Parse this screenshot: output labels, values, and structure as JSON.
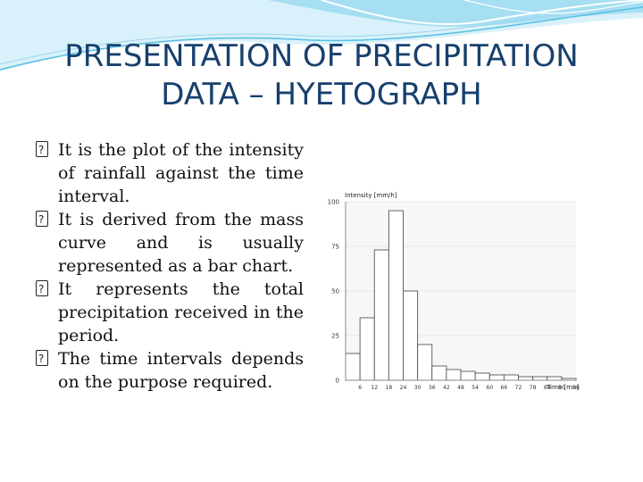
{
  "slide": {
    "title_line1": "PRESENTATION OF PRECIPITATION",
    "title_line2": "DATA – HYETOGRAPH",
    "bullets": [
      "It is the plot of the intensity of rainfall against the time interval.",
      "It is derived from the mass curve and is usually represented as a bar chart.",
      "It represents  the total precipitation received in the period.",
      " The time intervals depends on the purpose required."
    ]
  },
  "colors": {
    "title": "#17406d",
    "bar_stroke": "#555555",
    "wave_light": "#bfe7f5",
    "wave_mid": "#7fd0ee"
  },
  "chart_data": {
    "type": "bar",
    "ylabel": "Intensity [mm/h]",
    "xlabel": "Time [mn]",
    "ylim": [
      0,
      100
    ],
    "y_ticks": [
      "0",
      "25",
      "50",
      "75",
      "100"
    ],
    "categories": [
      "6",
      "12",
      "18",
      "24",
      "30",
      "36",
      "42",
      "48",
      "54",
      "60",
      "66",
      "72",
      "78",
      "84",
      "90",
      "96"
    ],
    "values": [
      15,
      35,
      73,
      95,
      50,
      20,
      8,
      6,
      5,
      4,
      3,
      3,
      2,
      2,
      2,
      1
    ],
    "grid": true
  }
}
